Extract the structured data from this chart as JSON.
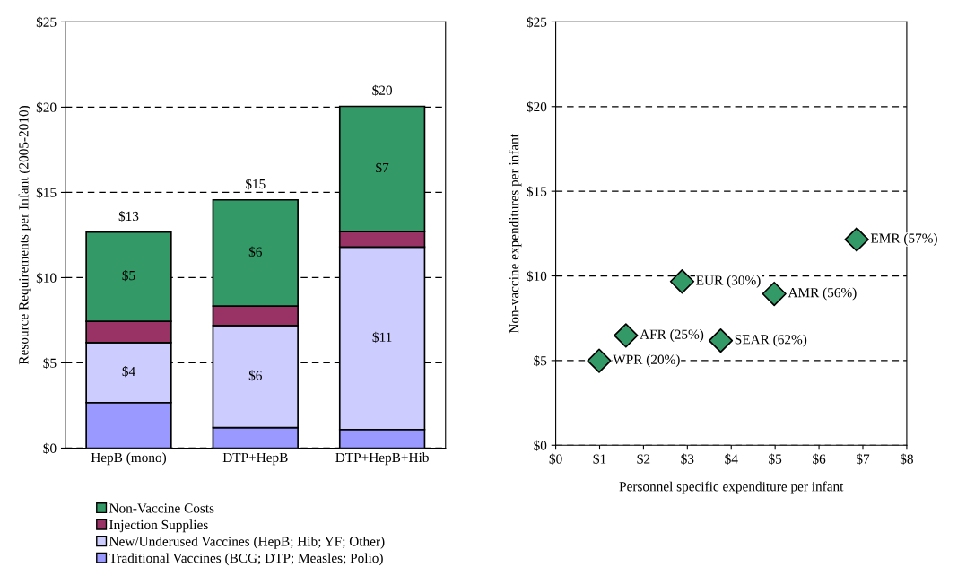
{
  "chart_data": [
    {
      "type": "bar",
      "stacked": true,
      "ylabel": "Resource Requirements per Infant (2005-2010)",
      "categories": [
        "HepB (mono)",
        "DTP+HepB",
        "DTP+HepB+Hib"
      ],
      "series": [
        {
          "name": "Traditional Vaccines (BCG; DTP; Measles; Polio)",
          "color": "#9999ff",
          "values": [
            2.67,
            1.2,
            1.09
          ],
          "value_labels": [
            null,
            null,
            null
          ]
        },
        {
          "name": "New/Underused Vaccines (HepB; Hib; YF; Other)",
          "color": "#ccccff",
          "values": [
            3.52,
            5.99,
            10.7
          ],
          "value_labels": [
            "$4",
            "$6",
            "$11"
          ]
        },
        {
          "name": "Injection Supplies",
          "color": "#993366",
          "values": [
            1.25,
            1.14,
            0.91
          ],
          "value_labels": [
            null,
            null,
            null
          ]
        },
        {
          "name": "Non-Vaccine Costs",
          "color": "#339966",
          "values": [
            5.23,
            6.23,
            7.35
          ],
          "value_labels": [
            "$5",
            "$6",
            "$7"
          ]
        }
      ],
      "totals": [
        "$13",
        "$15",
        "$20"
      ],
      "ylim": [
        0,
        25
      ],
      "yticks": [
        {
          "value": 0,
          "label": "$0"
        },
        {
          "value": 5,
          "label": "$5"
        },
        {
          "value": 10,
          "label": "$10"
        },
        {
          "value": 15,
          "label": "$15"
        },
        {
          "value": 20,
          "label": "$20"
        },
        {
          "value": 25,
          "label": "$25"
        }
      ],
      "grid": "y",
      "legend": "bottom"
    },
    {
      "type": "scatter",
      "xlabel": "Personnel specific expenditure per infant",
      "ylabel": "Non-vaccine expenditures per infant",
      "series": [
        {
          "color": "#339966",
          "x": [
            0.99,
            1.6,
            2.88,
            3.76,
            4.98,
            6.86
          ],
          "values": [
            4.99,
            6.48,
            9.67,
            6.18,
            8.94,
            12.15
          ]
        }
      ],
      "annotations": [
        {
          "text": "WPR (20%)",
          "x": 0.99,
          "y": 4.99
        },
        {
          "text": "AFR (25%)",
          "x": 1.6,
          "y": 6.48
        },
        {
          "text": "EUR (30%)",
          "x": 2.88,
          "y": 9.67
        },
        {
          "text": "SEAR (62%)",
          "x": 3.76,
          "y": 6.18
        },
        {
          "text": "AMR (56%)",
          "x": 4.98,
          "y": 8.94
        },
        {
          "text": "EMR (57%)",
          "x": 6.86,
          "y": 12.15
        }
      ],
      "marker": "diamond",
      "xlim": [
        0,
        8
      ],
      "xticks": [
        {
          "value": 0,
          "label": "$0"
        },
        {
          "value": 1,
          "label": "$1"
        },
        {
          "value": 2,
          "label": "$2"
        },
        {
          "value": 3,
          "label": "$3"
        },
        {
          "value": 4,
          "label": "$4"
        },
        {
          "value": 5,
          "label": "$5"
        },
        {
          "value": 6,
          "label": "$6"
        },
        {
          "value": 7,
          "label": "$7"
        },
        {
          "value": 8,
          "label": "$8"
        }
      ],
      "ylim": [
        0,
        25
      ],
      "yticks": [
        {
          "value": 0,
          "label": "$0"
        },
        {
          "value": 5,
          "label": "$5"
        },
        {
          "value": 10,
          "label": "$10"
        },
        {
          "value": 15,
          "label": "$15"
        },
        {
          "value": 20,
          "label": "$20"
        },
        {
          "value": 25,
          "label": "$25"
        }
      ],
      "grid": "y"
    }
  ]
}
